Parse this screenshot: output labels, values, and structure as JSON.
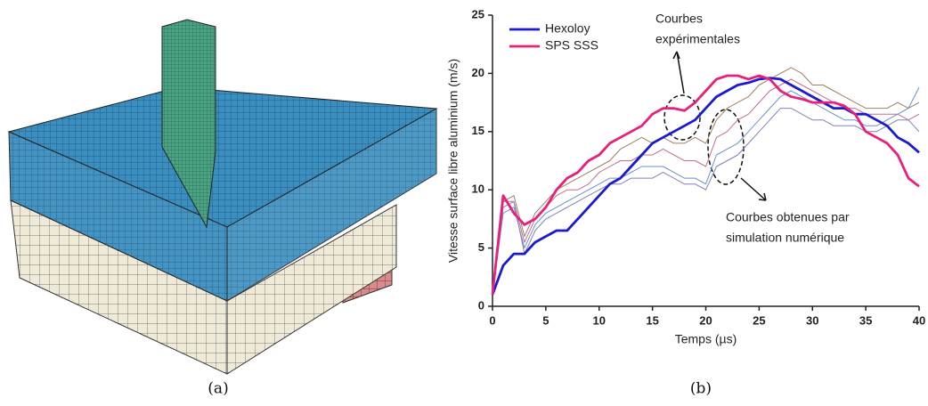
{
  "captions": [
    "(a)",
    "(b)"
  ],
  "chart_data": {
    "type": "line",
    "xlabel": "Temps (µs)",
    "ylabel": "Vitesse surface libre aluminium (m/s)",
    "x": [
      0,
      1,
      2,
      3,
      4,
      5,
      6,
      7,
      8,
      9,
      10,
      11,
      12,
      13,
      14,
      15,
      16,
      17,
      18,
      19,
      20,
      21,
      22,
      23,
      24,
      25,
      26,
      27,
      28,
      29,
      30,
      31,
      32,
      33,
      34,
      35,
      36,
      37,
      38,
      39,
      40
    ],
    "xlim": [
      0,
      40
    ],
    "xticks": [
      0,
      5,
      10,
      15,
      20,
      25,
      30,
      35,
      40
    ],
    "ylim": [
      0,
      25
    ],
    "yticks": [
      0,
      5,
      10,
      15,
      20,
      25
    ],
    "annotations": [
      [
        "Courbes",
        "expérimentales"
      ],
      [
        "Courbes obtenues par",
        "simulation numérique"
      ]
    ],
    "series": [
      {
        "color": "#a08060",
        "values": [
          1,
          9,
          9.5,
          6,
          8,
          9,
          10,
          10.5,
          11,
          11.5,
          12,
          12.5,
          13.5,
          14,
          14.5,
          14,
          14.5,
          14,
          14,
          14.5,
          14,
          16,
          17,
          17.5,
          18,
          19,
          19.5,
          20,
          20.5,
          20,
          19,
          19,
          18.5,
          18,
          17.5,
          17,
          17,
          17,
          17.5,
          17,
          17.5
        ]
      },
      {
        "color": "#6a8fd0",
        "values": [
          1,
          8,
          8.5,
          5,
          7,
          8,
          8.5,
          9,
          9.5,
          10,
          10.5,
          11,
          11,
          11.5,
          12,
          12,
          12,
          11.5,
          11,
          11,
          10.5,
          13,
          13.5,
          14,
          15,
          16,
          17,
          18,
          18.5,
          18,
          17.5,
          17,
          16.5,
          16,
          16,
          15.5,
          15.5,
          16,
          16.5,
          17,
          18.8
        ]
      },
      {
        "color": "#c07090",
        "values": [
          1,
          9,
          9,
          5.5,
          7.5,
          8.5,
          9.5,
          10,
          10,
          10.5,
          11.5,
          12,
          12.5,
          12.5,
          13,
          13,
          13.5,
          13,
          12.5,
          12.5,
          12,
          14.5,
          15,
          16,
          16.5,
          17.5,
          18.5,
          19,
          19.5,
          19,
          18.5,
          18,
          17.5,
          17,
          17,
          16.5,
          16.5,
          16.5,
          16.5,
          16,
          16.5
        ]
      },
      {
        "color": "#8080c0",
        "values": [
          1,
          8.5,
          9,
          4.5,
          6.5,
          7.5,
          8,
          8.5,
          9,
          9.5,
          10,
          10.5,
          10.5,
          11,
          11,
          11,
          11.5,
          11,
          10.5,
          10.5,
          10,
          12,
          12.5,
          13,
          14,
          15,
          16,
          17,
          17,
          16.5,
          16,
          16,
          15.5,
          15.5,
          15.5,
          15,
          15,
          15.5,
          16,
          16,
          15
        ]
      },
      {
        "name": "Hexoloy",
        "color": "#1a1ad0",
        "values": [
          1,
          3.5,
          4.5,
          4.5,
          5.5,
          6,
          6.5,
          6.5,
          7.5,
          8.5,
          9.5,
          10.5,
          11,
          12,
          13,
          14,
          14.5,
          15,
          15.5,
          16,
          17,
          18,
          18.5,
          19,
          19.2,
          19.5,
          19.6,
          19.5,
          19,
          18.5,
          18,
          17.5,
          17,
          17,
          16.5,
          16.5,
          16,
          15.5,
          14.5,
          14,
          13.2
        ]
      },
      {
        "name": "SPS SSS",
        "color": "#e8207a",
        "values": [
          1,
          9.5,
          8,
          7,
          7.5,
          8.5,
          10,
          11,
          11.5,
          12.5,
          13,
          14,
          14.5,
          15,
          15.5,
          16.5,
          17,
          17,
          16.8,
          17.5,
          18.5,
          19.5,
          19.8,
          19.8,
          19.5,
          19.8,
          19.5,
          18.5,
          18,
          17.8,
          17.5,
          17.5,
          17.5,
          17.2,
          16.5,
          15,
          14.5,
          14,
          13,
          11,
          10.3
        ]
      }
    ]
  }
}
